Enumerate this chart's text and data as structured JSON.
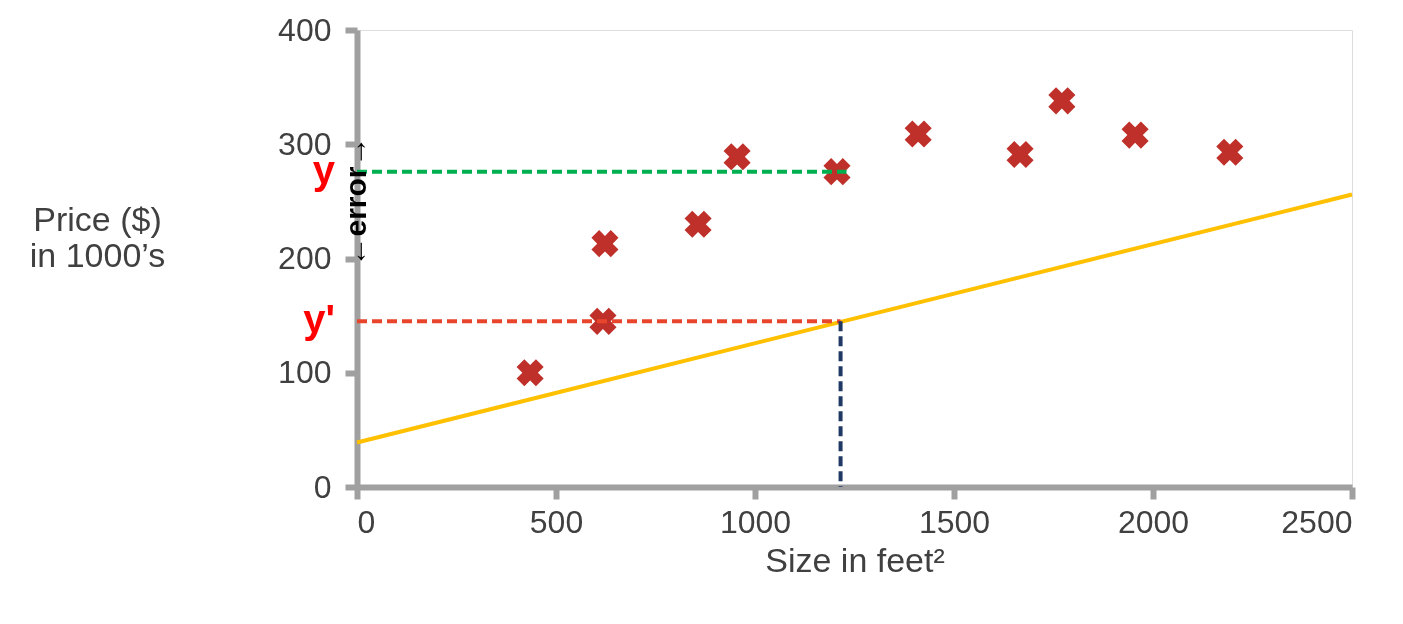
{
  "chart_data": {
    "type": "scatter",
    "xlabel": "Size in feet²",
    "ylabel": "Price ($)\nin 1000’s",
    "xlim": [
      0,
      2500
    ],
    "ylim": [
      0,
      400
    ],
    "xticks": [
      0,
      500,
      1000,
      1500,
      2000,
      2500
    ],
    "yticks": [
      0,
      100,
      200,
      300,
      400
    ],
    "grid": false,
    "series": [
      {
        "marker": "cross",
        "color": "#c0302a",
        "x": [
          435,
          618,
          623,
          857,
          955,
          1206,
          1410,
          1666,
          1771,
          1955,
          2193
        ],
        "values": [
          100,
          145,
          213,
          230,
          289,
          276,
          309,
          291,
          338,
          308,
          293
        ]
      },
      {
        "type": "line",
        "color": "#ffc000",
        "x": [
          0,
          2500
        ],
        "values": [
          39,
          256
        ]
      },
      {
        "type": "line",
        "name": "y",
        "color": "#00b050",
        "line_style": "dashed",
        "x": [
          0,
          1230
        ],
        "values": [
          276,
          276
        ]
      },
      {
        "type": "line",
        "name": "y'",
        "color": "#e8452c",
        "line_style": "dashed",
        "x": [
          0,
          1215
        ],
        "values": [
          145,
          145
        ]
      },
      {
        "type": "line",
        "color": "#1f3864",
        "line_style": "dashed",
        "x": [
          1215,
          1215
        ],
        "values": [
          145,
          0
        ]
      }
    ],
    "annotations": [
      "←error→"
    ]
  }
}
